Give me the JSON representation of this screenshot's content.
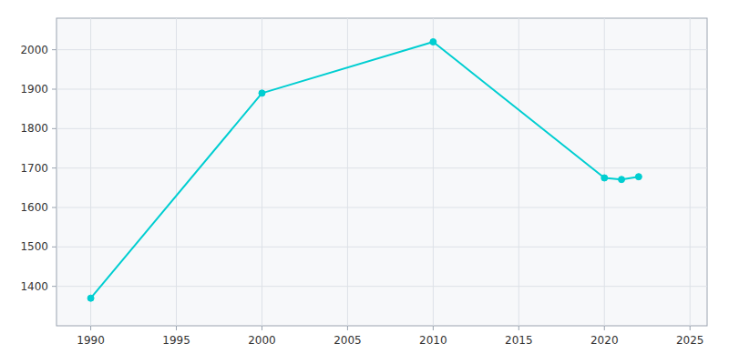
{
  "chart_data": {
    "type": "line",
    "x": [
      1990,
      2000,
      2010,
      2020,
      2021,
      2022
    ],
    "values": [
      1370,
      1890,
      2020,
      1675,
      1671,
      1678
    ],
    "color": "#00CED1",
    "marker": "circle",
    "xlim": [
      1988,
      2026
    ],
    "ylim": [
      1300,
      2080
    ],
    "xticks": [
      1990,
      1995,
      2000,
      2005,
      2010,
      2015,
      2020,
      2025
    ],
    "yticks": [
      1400,
      1500,
      1600,
      1700,
      1800,
      1900,
      2000
    ],
    "grid": true
  }
}
